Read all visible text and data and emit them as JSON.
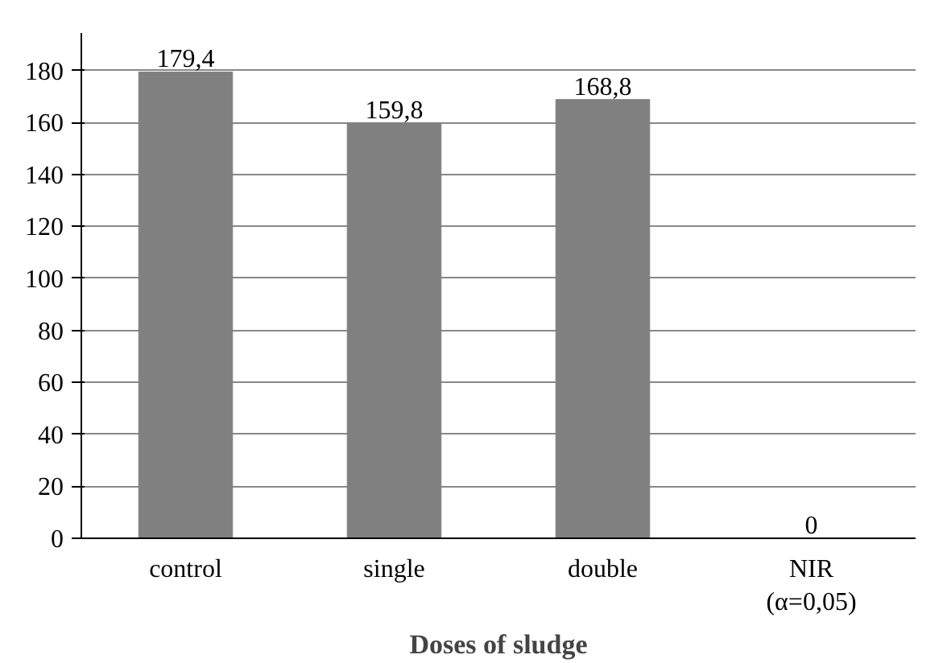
{
  "chart_data": {
    "type": "bar",
    "xlabel": "Doses of sludge",
    "categories": [
      "control",
      "single",
      "double",
      "NIR\n(α=0,05)"
    ],
    "values": [
      179.4,
      159.8,
      168.8,
      0
    ],
    "value_labels": [
      "179,4",
      "159,8",
      "168,8",
      "0"
    ],
    "color": "#808080",
    "ylim": [
      0,
      180
    ],
    "yticks": [
      0,
      20,
      40,
      60,
      80,
      100,
      120,
      140,
      160,
      180
    ],
    "grid": "y"
  }
}
